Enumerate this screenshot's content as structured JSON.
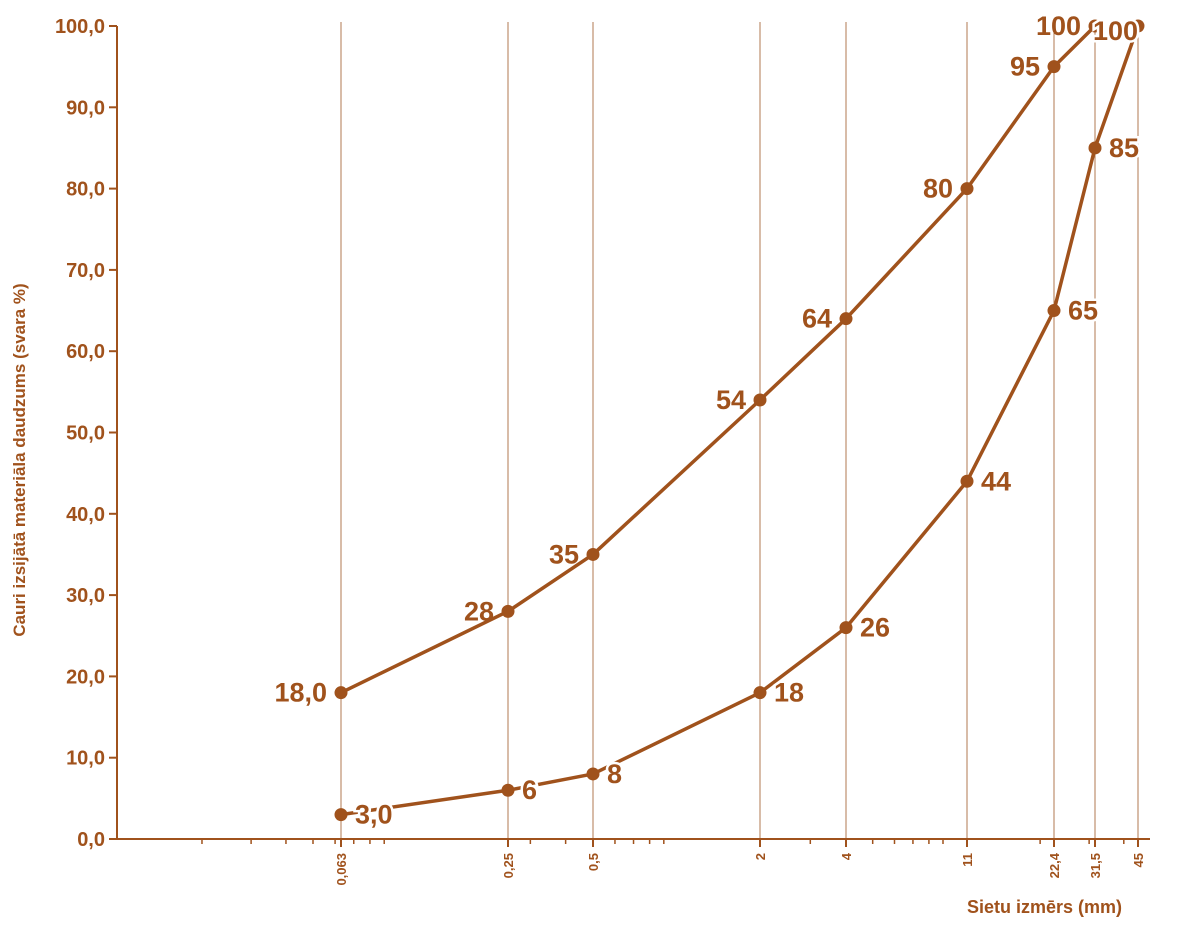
{
  "colors": {
    "series": "#a0521c",
    "gridline": "#b07a50",
    "text": "#a0521c",
    "background": "#ffffff"
  },
  "chart_data": {
    "type": "line",
    "x_scale": "log",
    "xlabel": "Sietu izmērs (mm)",
    "ylabel": "Cauri izsijātā materiāla daudzums (svara %)",
    "ylim": [
      0,
      100
    ],
    "x_ticks": [
      "0,063",
      "0,25",
      "0,5",
      "2",
      "4",
      "11",
      "22,4",
      "31,5",
      "45"
    ],
    "y_ticks": [
      "0,0",
      "10,0",
      "20,0",
      "30,0",
      "40,0",
      "50,0",
      "60,0",
      "70,0",
      "80,0",
      "90,0",
      "100,0"
    ],
    "grid": "vertical lines at sieve sizes",
    "series": [
      {
        "x": [
          0.063,
          0.25,
          0.5,
          2,
          4,
          11,
          22.4,
          31.5
        ],
        "y": [
          18,
          28,
          35,
          54,
          64,
          80,
          95,
          100
        ],
        "labels": [
          "18,0",
          "28",
          "35",
          "54",
          "64",
          "80",
          "95",
          "100"
        ]
      },
      {
        "x": [
          0.063,
          0.25,
          0.5,
          2,
          4,
          11,
          22.4,
          31.5,
          45
        ],
        "y": [
          3,
          6,
          8,
          18,
          26,
          44,
          65,
          85,
          100
        ],
        "labels": [
          "3,0",
          "6",
          "8",
          "18",
          "26",
          "44",
          "65",
          "85",
          "100"
        ]
      }
    ]
  }
}
